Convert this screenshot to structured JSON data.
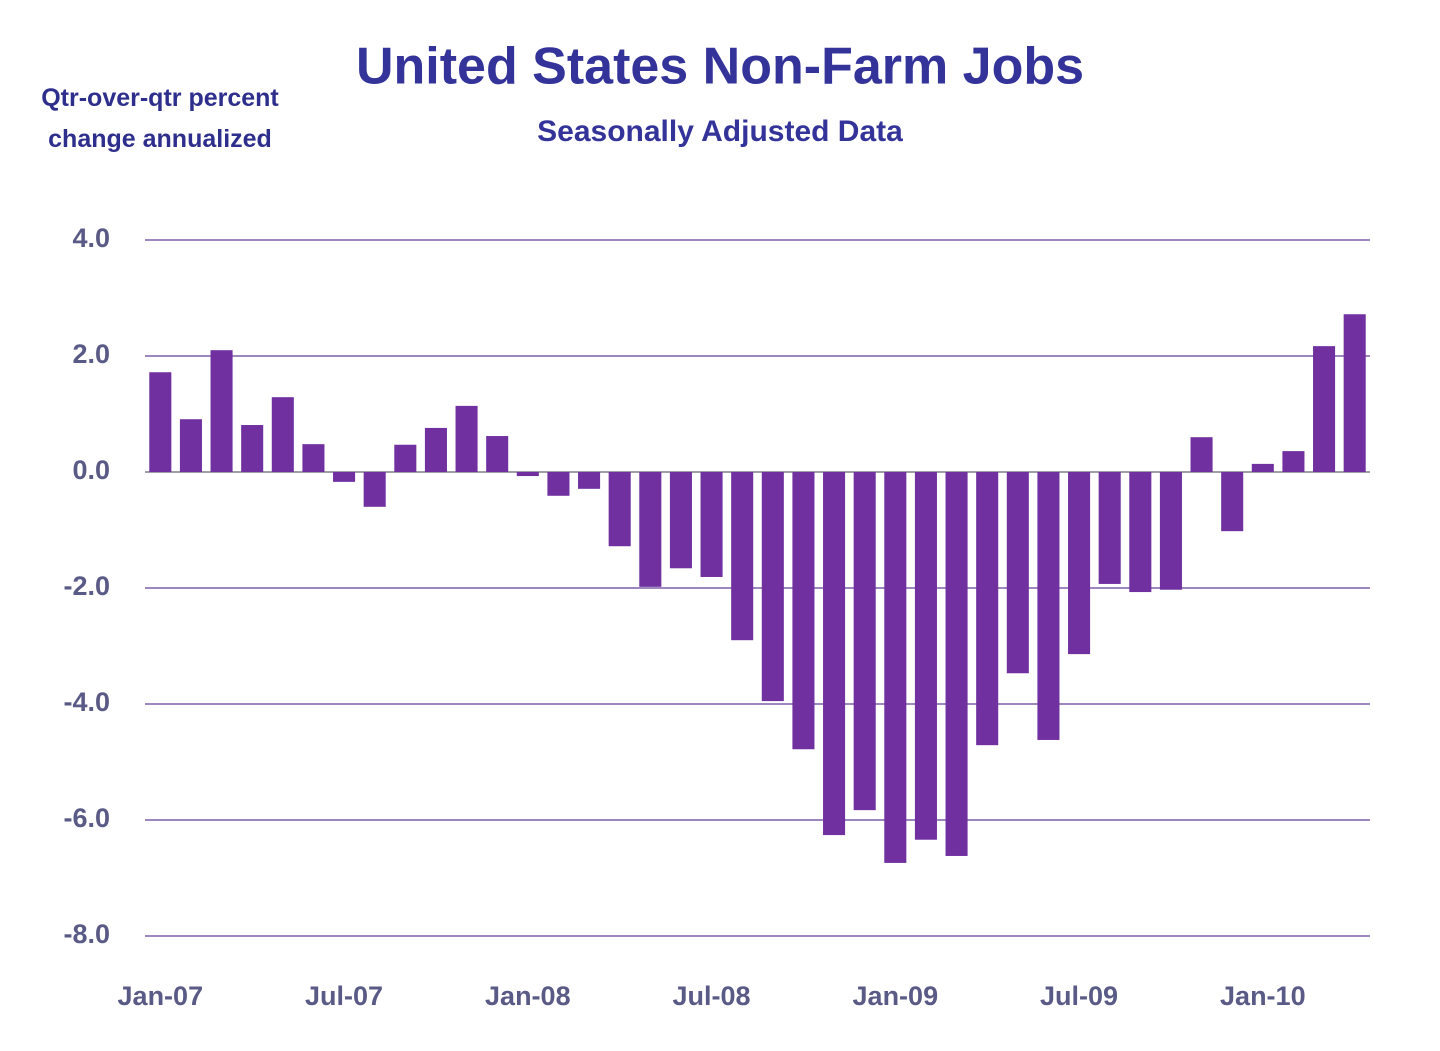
{
  "chart_data": {
    "type": "bar",
    "title": "United States Non-Farm Jobs",
    "subtitle": "Seasonally Adjusted Data",
    "y_label": "Qtr-over-qtr percent change annualized",
    "categories": [
      "Jan-07",
      null,
      null,
      null,
      null,
      null,
      "Jul-07",
      null,
      null,
      null,
      null,
      null,
      "Jan-08",
      null,
      null,
      null,
      null,
      null,
      "Jul-08",
      null,
      null,
      null,
      null,
      null,
      "Jan-09",
      null,
      null,
      null,
      null,
      null,
      "Jul-09",
      null,
      null,
      null,
      null,
      null,
      "Jan-10",
      null,
      null,
      null
    ],
    "values": [
      1.72,
      0.91,
      2.1,
      0.81,
      1.29,
      0.48,
      -0.17,
      -0.6,
      0.47,
      0.76,
      1.14,
      0.62,
      -0.07,
      -0.41,
      -0.29,
      -1.28,
      -1.98,
      -1.66,
      -1.81,
      -2.9,
      -3.95,
      -4.78,
      -6.26,
      -5.83,
      -6.74,
      -6.34,
      -6.62,
      -4.71,
      -3.47,
      -4.62,
      -3.14,
      -1.93,
      -2.07,
      -2.03,
      0.6,
      -1.02,
      0.14,
      0.36,
      2.17,
      2.72
    ],
    "color": "#7030a0",
    "ylim": [
      -8,
      4
    ],
    "yticks": [
      {
        "value": -8,
        "label": "-8.0"
      },
      {
        "value": -6,
        "label": "-6.0"
      },
      {
        "value": -4,
        "label": "-4.0"
      },
      {
        "value": -2,
        "label": "-2.0"
      },
      {
        "value": 0,
        "label": "0.0"
      },
      {
        "value": 2,
        "label": "2.0"
      },
      {
        "value": 4,
        "label": "4.0"
      }
    ],
    "grid": true
  }
}
